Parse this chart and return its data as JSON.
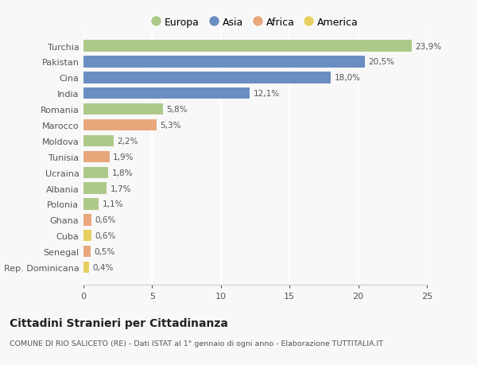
{
  "countries": [
    "Turchia",
    "Pakistan",
    "Cina",
    "India",
    "Romania",
    "Marocco",
    "Moldova",
    "Tunisia",
    "Ucraina",
    "Albania",
    "Polonia",
    "Ghana",
    "Cuba",
    "Senegal",
    "Rep. Dominicana"
  ],
  "values": [
    23.9,
    20.5,
    18.0,
    12.1,
    5.8,
    5.3,
    2.2,
    1.9,
    1.8,
    1.7,
    1.1,
    0.6,
    0.6,
    0.5,
    0.4
  ],
  "labels": [
    "23,9%",
    "20,5%",
    "18,0%",
    "12,1%",
    "5,8%",
    "5,3%",
    "2,2%",
    "1,9%",
    "1,8%",
    "1,7%",
    "1,1%",
    "0,6%",
    "0,6%",
    "0,5%",
    "0,4%"
  ],
  "categories": [
    "Europa",
    "Asia",
    "Africa",
    "America"
  ],
  "continent": [
    "Europa",
    "Asia",
    "Asia",
    "Asia",
    "Europa",
    "Africa",
    "Europa",
    "Africa",
    "Europa",
    "Europa",
    "Europa",
    "Africa",
    "America",
    "Africa",
    "America"
  ],
  "colors": {
    "Europa": "#adc98a",
    "Asia": "#6b8ec2",
    "Africa": "#e8a87c",
    "America": "#e8d060"
  },
  "background_color": "#f8f8f8",
  "title": "Cittadini Stranieri per Cittadinanza",
  "subtitle": "COMUNE DI RIO SALICETO (RE) - Dati ISTAT al 1° gennaio di ogni anno - Elaborazione TUTTITALIA.IT",
  "xlim": [
    0,
    25
  ],
  "xticks": [
    0,
    5,
    10,
    15,
    20,
    25
  ]
}
